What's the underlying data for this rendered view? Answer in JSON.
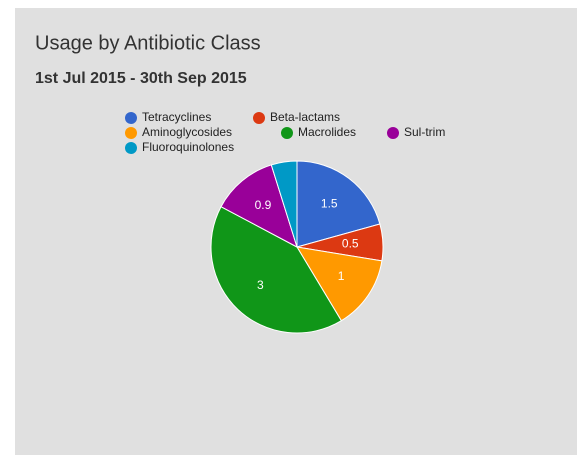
{
  "chart_data": {
    "type": "pie",
    "title": "Usage by Antibiotic Class",
    "subtitle": "1st Jul 2015 - 30th Sep 2015",
    "categories": [
      "Tetracyclines",
      "Beta-lactams",
      "Aminoglycosides",
      "Macrolides",
      "Sul-trim",
      "Fluoroquinolones"
    ],
    "values": [
      1.5,
      0.5,
      1,
      3,
      0.9,
      0.35
    ],
    "colors": [
      "#3366cc",
      "#dc3912",
      "#ff9900",
      "#109618",
      "#990099",
      "#0099c6"
    ],
    "legend": "top"
  }
}
